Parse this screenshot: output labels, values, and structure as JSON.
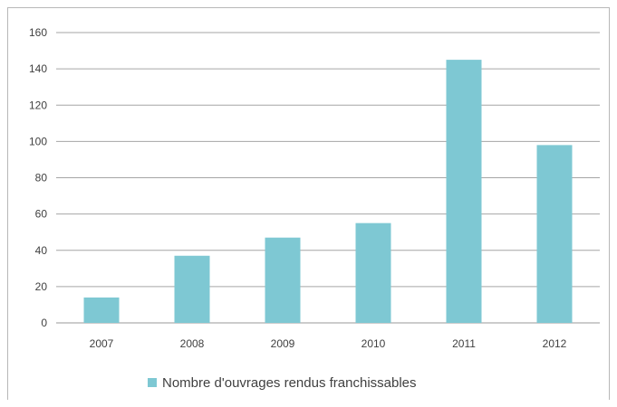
{
  "chart_data": {
    "type": "bar",
    "categories": [
      "2007",
      "2008",
      "2009",
      "2010",
      "2011",
      "2012"
    ],
    "series": [
      {
        "name": "Nombre d'ouvrages rendus franchissables",
        "values": [
          14,
          37,
          47,
          55,
          145,
          98
        ],
        "color": "#7ec8d3"
      }
    ],
    "title": "",
    "xlabel": "",
    "ylabel": "",
    "ylim": [
      0,
      160
    ],
    "yticks": [
      0,
      20,
      40,
      60,
      80,
      100,
      120,
      140,
      160
    ],
    "grid": true,
    "legend": "bottom"
  }
}
